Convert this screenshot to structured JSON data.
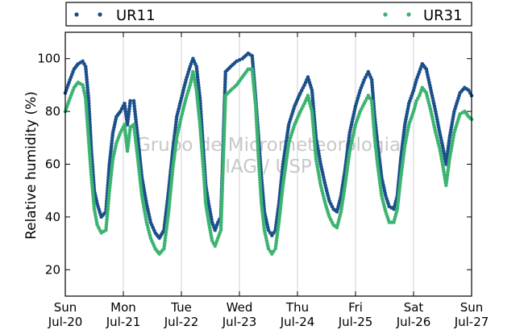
{
  "chart_data": {
    "type": "scatter",
    "ylabel": "Relative humidity (%)",
    "ylim": [
      10,
      110
    ],
    "yticks": [
      20,
      40,
      60,
      80,
      100
    ],
    "xlim": [
      0,
      7
    ],
    "x_unit": "days",
    "xticks": [
      {
        "x": 0,
        "day": "Sun",
        "date": "Jul-20"
      },
      {
        "x": 1,
        "day": "Mon",
        "date": "Jul-21"
      },
      {
        "x": 2,
        "day": "Tue",
        "date": "Jul-22"
      },
      {
        "x": 3,
        "day": "Wed",
        "date": "Jul-23"
      },
      {
        "x": 4,
        "day": "Thu",
        "date": "Jul-24"
      },
      {
        "x": 5,
        "day": "Fri",
        "date": "Jul-25"
      },
      {
        "x": 6,
        "day": "Sat",
        "date": "Jul-26"
      },
      {
        "x": 7,
        "day": "Sun",
        "date": "Jul-27"
      }
    ],
    "grid": "vertical lines at day boundaries",
    "legend_placement": "top (outside plot)",
    "watermark": [
      "Grupo de Micrometeorologia",
      "IAG / USP"
    ],
    "series": [
      {
        "name": "UR11",
        "color": "#1a4f8a",
        "points": [
          [
            0.0,
            87
          ],
          [
            0.08,
            92
          ],
          [
            0.15,
            96
          ],
          [
            0.22,
            98
          ],
          [
            0.3,
            99
          ],
          [
            0.35,
            97
          ],
          [
            0.4,
            85
          ],
          [
            0.45,
            65
          ],
          [
            0.5,
            50
          ],
          [
            0.55,
            45
          ],
          [
            0.62,
            40
          ],
          [
            0.7,
            42
          ],
          [
            0.76,
            60
          ],
          [
            0.82,
            72
          ],
          [
            0.88,
            78
          ],
          [
            0.95,
            80
          ],
          [
            1.02,
            83
          ],
          [
            1.07,
            75
          ],
          [
            1.12,
            84
          ],
          [
            1.18,
            84
          ],
          [
            1.25,
            70
          ],
          [
            1.32,
            55
          ],
          [
            1.4,
            45
          ],
          [
            1.47,
            38
          ],
          [
            1.55,
            34
          ],
          [
            1.62,
            32
          ],
          [
            1.7,
            35
          ],
          [
            1.78,
            50
          ],
          [
            1.85,
            65
          ],
          [
            1.92,
            78
          ],
          [
            2.0,
            85
          ],
          [
            2.08,
            92
          ],
          [
            2.15,
            97
          ],
          [
            2.2,
            100
          ],
          [
            2.26,
            97
          ],
          [
            2.32,
            85
          ],
          [
            2.38,
            65
          ],
          [
            2.42,
            52
          ],
          [
            2.47,
            45
          ],
          [
            2.53,
            38
          ],
          [
            2.58,
            35
          ],
          [
            2.63,
            38
          ],
          [
            2.68,
            40
          ],
          [
            2.76,
            95
          ],
          [
            2.85,
            97
          ],
          [
            2.95,
            99
          ],
          [
            3.05,
            100
          ],
          [
            3.15,
            102
          ],
          [
            3.22,
            101
          ],
          [
            3.28,
            85
          ],
          [
            3.33,
            70
          ],
          [
            3.38,
            55
          ],
          [
            3.43,
            42
          ],
          [
            3.5,
            35
          ],
          [
            3.56,
            33
          ],
          [
            3.62,
            35
          ],
          [
            3.68,
            45
          ],
          [
            3.75,
            60
          ],
          [
            3.85,
            75
          ],
          [
            3.95,
            82
          ],
          [
            4.05,
            87
          ],
          [
            4.12,
            90
          ],
          [
            4.18,
            93
          ],
          [
            4.25,
            88
          ],
          [
            4.32,
            70
          ],
          [
            4.4,
            60
          ],
          [
            4.48,
            52
          ],
          [
            4.55,
            46
          ],
          [
            4.62,
            43
          ],
          [
            4.68,
            42
          ],
          [
            4.75,
            48
          ],
          [
            4.82,
            58
          ],
          [
            4.9,
            72
          ],
          [
            5.0,
            82
          ],
          [
            5.08,
            88
          ],
          [
            5.15,
            92
          ],
          [
            5.22,
            95
          ],
          [
            5.28,
            92
          ],
          [
            5.33,
            78
          ],
          [
            5.38,
            68
          ],
          [
            5.45,
            55
          ],
          [
            5.52,
            48
          ],
          [
            5.58,
            44
          ],
          [
            5.66,
            43
          ],
          [
            5.72,
            48
          ],
          [
            5.78,
            62
          ],
          [
            5.85,
            75
          ],
          [
            5.92,
            83
          ],
          [
            6.0,
            88
          ],
          [
            6.05,
            92
          ],
          [
            6.1,
            95
          ],
          [
            6.15,
            98
          ],
          [
            6.22,
            96
          ],
          [
            6.3,
            88
          ],
          [
            6.38,
            80
          ],
          [
            6.45,
            72
          ],
          [
            6.5,
            67
          ],
          [
            6.56,
            60
          ],
          [
            6.62,
            70
          ],
          [
            6.7,
            80
          ],
          [
            6.8,
            87
          ],
          [
            6.88,
            89
          ],
          [
            6.95,
            88
          ],
          [
            7.0,
            86
          ]
        ]
      },
      {
        "name": "UR31",
        "color": "#3cb371",
        "points": [
          [
            0.0,
            80
          ],
          [
            0.08,
            85
          ],
          [
            0.15,
            89
          ],
          [
            0.22,
            91
          ],
          [
            0.3,
            90
          ],
          [
            0.35,
            85
          ],
          [
            0.4,
            70
          ],
          [
            0.45,
            55
          ],
          [
            0.5,
            43
          ],
          [
            0.55,
            37
          ],
          [
            0.62,
            34
          ],
          [
            0.7,
            35
          ],
          [
            0.76,
            50
          ],
          [
            0.82,
            62
          ],
          [
            0.88,
            68
          ],
          [
            0.95,
            72
          ],
          [
            1.02,
            75
          ],
          [
            1.07,
            65
          ],
          [
            1.12,
            74
          ],
          [
            1.18,
            75
          ],
          [
            1.25,
            62
          ],
          [
            1.32,
            48
          ],
          [
            1.4,
            38
          ],
          [
            1.47,
            32
          ],
          [
            1.55,
            28
          ],
          [
            1.62,
            26
          ],
          [
            1.7,
            28
          ],
          [
            1.78,
            42
          ],
          [
            1.85,
            58
          ],
          [
            1.92,
            70
          ],
          [
            2.0,
            78
          ],
          [
            2.08,
            85
          ],
          [
            2.15,
            90
          ],
          [
            2.2,
            95
          ],
          [
            2.26,
            88
          ],
          [
            2.32,
            75
          ],
          [
            2.38,
            58
          ],
          [
            2.42,
            45
          ],
          [
            2.47,
            38
          ],
          [
            2.53,
            31
          ],
          [
            2.58,
            29
          ],
          [
            2.63,
            32
          ],
          [
            2.68,
            35
          ],
          [
            2.76,
            86
          ],
          [
            2.85,
            88
          ],
          [
            2.95,
            90
          ],
          [
            3.05,
            93
          ],
          [
            3.15,
            96
          ],
          [
            3.22,
            96
          ],
          [
            3.28,
            82
          ],
          [
            3.33,
            62
          ],
          [
            3.38,
            45
          ],
          [
            3.43,
            35
          ],
          [
            3.5,
            28
          ],
          [
            3.56,
            26
          ],
          [
            3.62,
            28
          ],
          [
            3.68,
            38
          ],
          [
            3.75,
            52
          ],
          [
            3.85,
            68
          ],
          [
            3.95,
            75
          ],
          [
            4.05,
            80
          ],
          [
            4.12,
            83
          ],
          [
            4.18,
            86
          ],
          [
            4.25,
            80
          ],
          [
            4.32,
            62
          ],
          [
            4.4,
            52
          ],
          [
            4.48,
            45
          ],
          [
            4.55,
            40
          ],
          [
            4.62,
            37
          ],
          [
            4.68,
            36
          ],
          [
            4.75,
            42
          ],
          [
            4.82,
            52
          ],
          [
            4.9,
            65
          ],
          [
            5.0,
            75
          ],
          [
            5.08,
            80
          ],
          [
            5.15,
            83
          ],
          [
            5.22,
            86
          ],
          [
            5.28,
            84
          ],
          [
            5.33,
            70
          ],
          [
            5.38,
            60
          ],
          [
            5.45,
            48
          ],
          [
            5.52,
            42
          ],
          [
            5.58,
            38
          ],
          [
            5.66,
            38
          ],
          [
            5.72,
            43
          ],
          [
            5.78,
            55
          ],
          [
            5.85,
            67
          ],
          [
            5.92,
            75
          ],
          [
            6.0,
            80
          ],
          [
            6.05,
            84
          ],
          [
            6.1,
            86
          ],
          [
            6.15,
            89
          ],
          [
            6.22,
            87
          ],
          [
            6.3,
            80
          ],
          [
            6.38,
            72
          ],
          [
            6.45,
            66
          ],
          [
            6.5,
            60
          ],
          [
            6.56,
            52
          ],
          [
            6.62,
            62
          ],
          [
            6.7,
            72
          ],
          [
            6.8,
            79
          ],
          [
            6.88,
            80
          ],
          [
            6.95,
            78
          ],
          [
            7.0,
            77
          ]
        ]
      }
    ]
  }
}
